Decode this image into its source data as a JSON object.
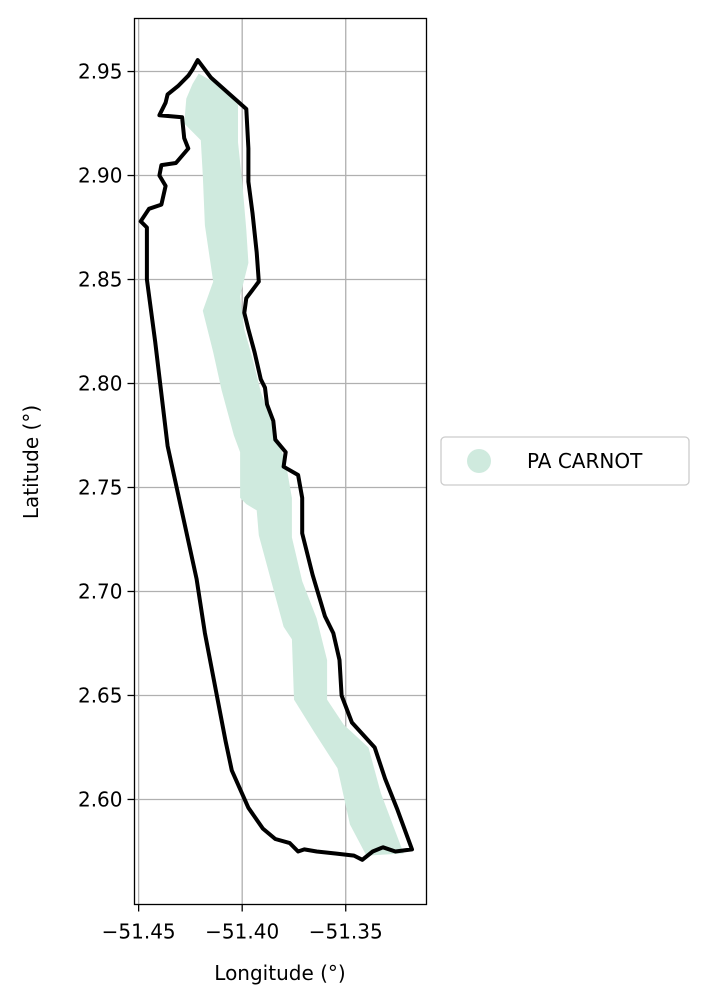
{
  "chart_data": {
    "type": "map",
    "xlabel": "Longitude (°)",
    "ylabel": "Latitude (°)",
    "xlim": [
      -51.452,
      -51.311
    ],
    "ylim": [
      2.5495,
      2.9755
    ],
    "x_ticks": [
      -51.45,
      -51.4,
      -51.35
    ],
    "x_tick_labels": [
      "−51.45",
      "−51.40",
      "−51.35"
    ],
    "y_ticks": [
      2.6,
      2.65,
      2.7,
      2.75,
      2.8,
      2.85,
      2.9,
      2.95
    ],
    "y_tick_labels": [
      "2.60",
      "2.65",
      "2.70",
      "2.75",
      "2.80",
      "2.85",
      "2.90",
      "2.95"
    ],
    "grid": true,
    "legend": {
      "placement": "right",
      "entries": [
        {
          "label": "PA CARNOT",
          "color": "#cfeade",
          "marker": "circle"
        }
      ]
    },
    "layers": [
      {
        "name": "PA CARNOT",
        "kind": "filled-polygon",
        "color": "#cfeade",
        "coordinates": [
          [
            -51.421,
            2.949
          ],
          [
            -51.412,
            2.944
          ],
          [
            -51.402,
            2.934
          ],
          [
            -51.402,
            2.916
          ],
          [
            -51.4,
            2.897
          ],
          [
            -51.398,
            2.874
          ],
          [
            -51.397,
            2.858
          ],
          [
            -51.401,
            2.842
          ],
          [
            -51.399,
            2.826
          ],
          [
            -51.395,
            2.812
          ],
          [
            -51.391,
            2.796
          ],
          [
            -51.385,
            2.779
          ],
          [
            -51.379,
            2.762
          ],
          [
            -51.376,
            2.745
          ],
          [
            -51.376,
            2.726
          ],
          [
            -51.371,
            2.705
          ],
          [
            -51.364,
            2.687
          ],
          [
            -51.359,
            2.667
          ],
          [
            -51.359,
            2.648
          ],
          [
            -51.351,
            2.636
          ],
          [
            -51.339,
            2.625
          ],
          [
            -51.333,
            2.603
          ],
          [
            -51.322,
            2.574
          ],
          [
            -51.34,
            2.573
          ],
          [
            -51.348,
            2.588
          ],
          [
            -51.354,
            2.615
          ],
          [
            -51.365,
            2.632
          ],
          [
            -51.375,
            2.648
          ],
          [
            -51.376,
            2.677
          ],
          [
            -51.38,
            2.683
          ],
          [
            -51.386,
            2.705
          ],
          [
            -51.392,
            2.727
          ],
          [
            -51.393,
            2.739
          ],
          [
            -51.398,
            2.742
          ],
          [
            -51.401,
            2.745
          ],
          [
            -51.401,
            2.767
          ],
          [
            -51.404,
            2.775
          ],
          [
            -51.41,
            2.797
          ],
          [
            -51.414,
            2.815
          ],
          [
            -51.419,
            2.835
          ],
          [
            -51.414,
            2.849
          ],
          [
            -51.418,
            2.876
          ],
          [
            -51.419,
            2.9
          ],
          [
            -51.42,
            2.917
          ],
          [
            -51.428,
            2.925
          ],
          [
            -51.427,
            2.937
          ],
          [
            -51.424,
            2.944
          ]
        ]
      },
      {
        "name": "outline",
        "kind": "outline",
        "color": "#000000",
        "coordinates": [
          [
            -51.4215,
            2.9555
          ],
          [
            -51.415,
            2.947
          ],
          [
            -51.406,
            2.939
          ],
          [
            -51.398,
            2.932
          ],
          [
            -51.397,
            2.913
          ],
          [
            -51.397,
            2.897
          ],
          [
            -51.395,
            2.882
          ],
          [
            -51.393,
            2.863
          ],
          [
            -51.392,
            2.849
          ],
          [
            -51.398,
            2.841
          ],
          [
            -51.399,
            2.834
          ],
          [
            -51.397,
            2.826
          ],
          [
            -51.394,
            2.815
          ],
          [
            -51.391,
            2.802
          ],
          [
            -51.389,
            2.798
          ],
          [
            -51.388,
            2.79
          ],
          [
            -51.385,
            2.782
          ],
          [
            -51.384,
            2.773
          ],
          [
            -51.379,
            2.767
          ],
          [
            -51.38,
            2.76
          ],
          [
            -51.373,
            2.756
          ],
          [
            -51.371,
            2.745
          ],
          [
            -51.371,
            2.728
          ],
          [
            -51.366,
            2.708
          ],
          [
            -51.36,
            2.688
          ],
          [
            -51.356,
            2.68
          ],
          [
            -51.353,
            2.667
          ],
          [
            -51.352,
            2.65
          ],
          [
            -51.347,
            2.637
          ],
          [
            -51.336,
            2.625
          ],
          [
            -51.331,
            2.61
          ],
          [
            -51.325,
            2.595
          ],
          [
            -51.318,
            2.576
          ],
          [
            -51.326,
            2.575
          ],
          [
            -51.332,
            2.577
          ],
          [
            -51.337,
            2.575
          ],
          [
            -51.342,
            2.571
          ],
          [
            -51.346,
            2.573
          ],
          [
            -51.355,
            2.574
          ],
          [
            -51.364,
            2.575
          ],
          [
            -51.37,
            2.576
          ],
          [
            -51.373,
            2.575
          ],
          [
            -51.377,
            2.579
          ],
          [
            -51.384,
            2.581
          ],
          [
            -51.39,
            2.586
          ],
          [
            -51.397,
            2.596
          ],
          [
            -51.405,
            2.614
          ],
          [
            -51.408,
            2.628
          ],
          [
            -51.418,
            2.68
          ],
          [
            -51.422,
            2.706
          ],
          [
            -51.436,
            2.77
          ],
          [
            -51.442,
            2.82
          ],
          [
            -51.446,
            2.85
          ],
          [
            -51.446,
            2.875
          ],
          [
            -51.449,
            2.878
          ],
          [
            -51.445,
            2.884
          ],
          [
            -51.439,
            2.886
          ],
          [
            -51.437,
            2.895
          ],
          [
            -51.44,
            2.9
          ],
          [
            -51.439,
            2.905
          ],
          [
            -51.432,
            2.906
          ],
          [
            -51.426,
            2.913
          ],
          [
            -51.428,
            2.918
          ],
          [
            -51.429,
            2.928
          ],
          [
            -51.44,
            2.929
          ],
          [
            -51.437,
            2.935
          ],
          [
            -51.436,
            2.939
          ],
          [
            -51.431,
            2.943
          ],
          [
            -51.426,
            2.948
          ],
          [
            -51.424,
            2.951
          ]
        ]
      }
    ]
  }
}
